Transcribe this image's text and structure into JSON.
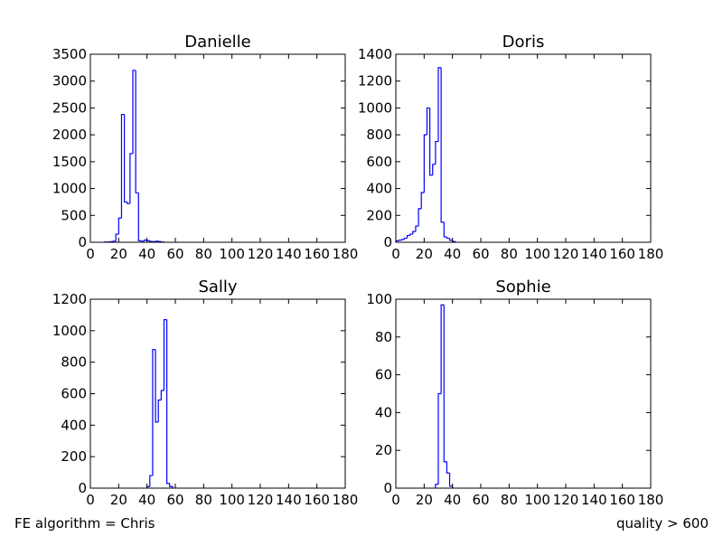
{
  "chart_data": [
    {
      "type": "histogram",
      "title": "Danielle",
      "color": "#0000ff",
      "bins": [
        10,
        12,
        14,
        16,
        18,
        20,
        22,
        24,
        26,
        28,
        30,
        32,
        34,
        36,
        38,
        40,
        42,
        44,
        46,
        48,
        50,
        52
      ],
      "counts": [
        5,
        5,
        10,
        20,
        150,
        450,
        2380,
        750,
        720,
        1650,
        3200,
        920,
        30,
        20,
        40,
        30,
        15,
        10,
        20,
        15,
        5
      ],
      "xlim": [
        0,
        180
      ],
      "xticks": [
        0,
        20,
        40,
        60,
        80,
        100,
        120,
        140,
        160,
        180
      ],
      "ylim": [
        0,
        3500
      ],
      "yticks": [
        0,
        500,
        1000,
        1500,
        2000,
        2500,
        3000,
        3500
      ]
    },
    {
      "type": "histogram",
      "title": "Doris",
      "color": "#0000ff",
      "bins": [
        0,
        2,
        4,
        6,
        8,
        10,
        12,
        14,
        16,
        18,
        20,
        22,
        24,
        26,
        28,
        30,
        32,
        34,
        36,
        38,
        40,
        42
      ],
      "counts": [
        10,
        15,
        20,
        30,
        50,
        60,
        80,
        120,
        250,
        370,
        800,
        1000,
        500,
        580,
        750,
        1300,
        150,
        40,
        30,
        15,
        5
      ],
      "xlim": [
        0,
        180
      ],
      "xticks": [
        0,
        20,
        40,
        60,
        80,
        100,
        120,
        140,
        160,
        180
      ],
      "ylim": [
        0,
        1400
      ],
      "yticks": [
        0,
        200,
        400,
        600,
        800,
        1000,
        1200,
        1400
      ]
    },
    {
      "type": "histogram",
      "title": "Sally",
      "color": "#0000ff",
      "bins": [
        40,
        42,
        44,
        46,
        48,
        50,
        52,
        54,
        56,
        58
      ],
      "counts": [
        10,
        80,
        880,
        420,
        560,
        620,
        1070,
        30,
        10
      ],
      "xlim": [
        0,
        180
      ],
      "xticks": [
        0,
        20,
        40,
        60,
        80,
        100,
        120,
        140,
        160,
        180
      ],
      "ylim": [
        0,
        1200
      ],
      "yticks": [
        0,
        200,
        400,
        600,
        800,
        1000,
        1200
      ]
    },
    {
      "type": "histogram",
      "title": "Sophie",
      "color": "#0000ff",
      "bins": [
        28,
        30,
        32,
        34,
        36,
        38,
        40
      ],
      "counts": [
        2,
        50,
        97,
        14,
        8,
        1
      ],
      "xlim": [
        0,
        180
      ],
      "xticks": [
        0,
        20,
        40,
        60,
        80,
        100,
        120,
        140,
        160,
        180
      ],
      "ylim": [
        0,
        100
      ],
      "yticks": [
        0,
        20,
        40,
        60,
        80,
        100
      ]
    }
  ],
  "footer_left": "FE algorithm = Chris",
  "footer_right": "quality > 600"
}
